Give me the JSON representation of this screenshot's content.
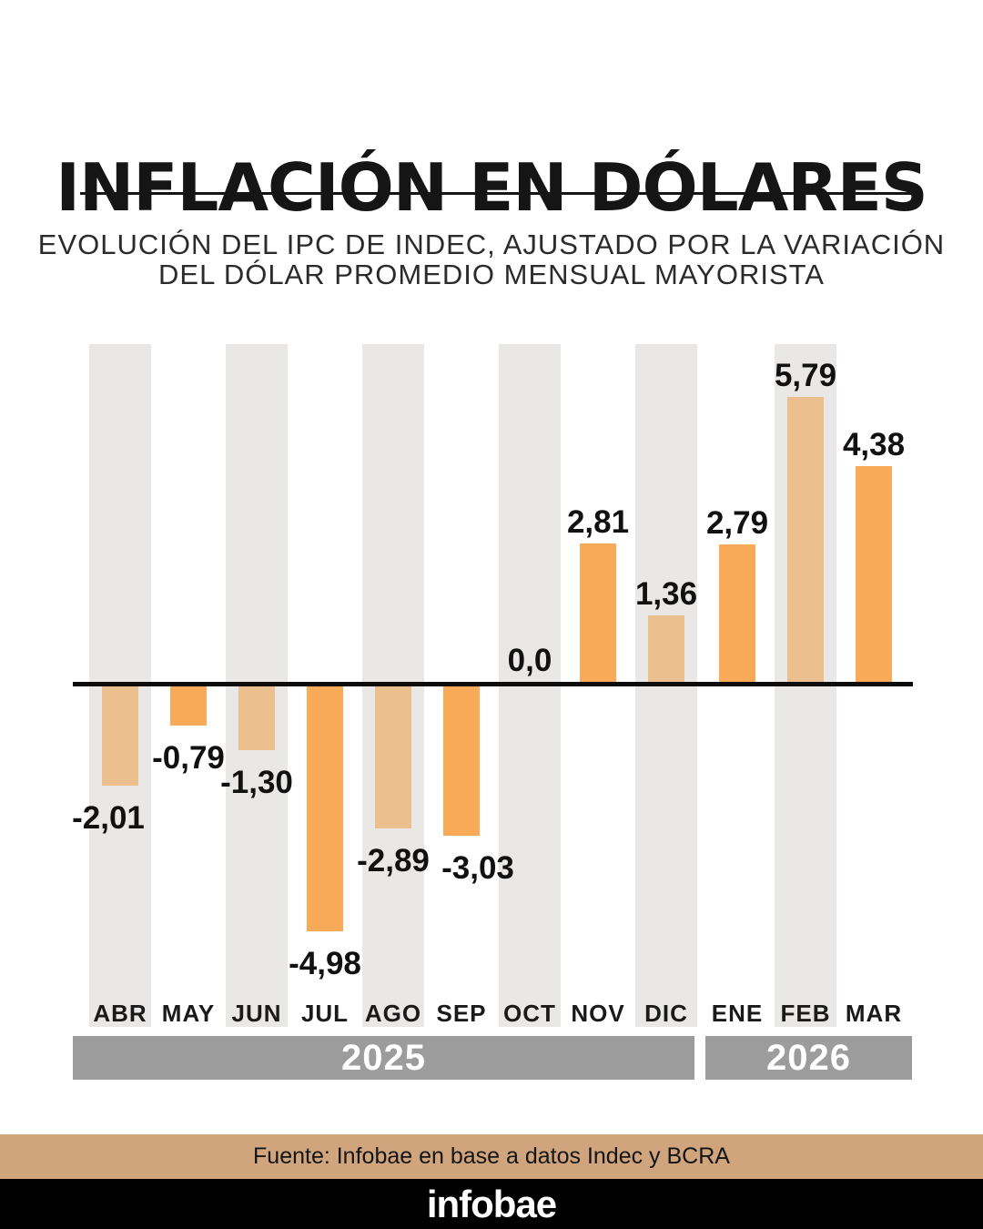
{
  "header": {
    "title": "INFLACIÓN EN DÓLARES",
    "subtitle_line1": "EVOLUCIÓN DEL IPC DE INDEC, AJUSTADO POR LA VARIACIÓN",
    "subtitle_line2": "DEL DÓLAR PROMEDIO MENSUAL MAYORISTA"
  },
  "chart_data": {
    "type": "bar",
    "categories": [
      "ABR",
      "MAY",
      "JUN",
      "JUL",
      "AGO",
      "SEP",
      "OCT",
      "NOV",
      "DIC",
      "ENE",
      "FEB",
      "MAR"
    ],
    "values": [
      -2.01,
      -0.79,
      -1.3,
      -4.98,
      -2.89,
      -3.03,
      0.0,
      2.81,
      1.36,
      2.79,
      5.79,
      4.38
    ],
    "value_labels": [
      "-2,01",
      "-0,79",
      "-1,30",
      "-4,98",
      "-2,89",
      "-3,03",
      "0,0",
      "2,81",
      "1,36",
      "2,79",
      "5,79",
      "4,38"
    ],
    "year_groups": [
      {
        "label": "2025",
        "months": [
          "ABR",
          "MAY",
          "JUN",
          "JUL",
          "AGO",
          "SEP",
          "OCT",
          "NOV",
          "DIC"
        ]
      },
      {
        "label": "2026",
        "months": [
          "ENE",
          "FEB",
          "MAR"
        ]
      }
    ],
    "baseline_value": 0,
    "ylim": [
      -5.5,
      6.5
    ],
    "grid": false,
    "legend": false,
    "title": "INFLACIÓN EN DÓLARES",
    "xlabel": "",
    "ylabel": ""
  },
  "footer": {
    "source": "Fuente: Infobae en base a datos Indec y BCRA",
    "brand": "infobae"
  },
  "colors": {
    "bar_orange": "#F8AA58",
    "bar_tan": "#EBC08E",
    "stripe_gray": "#E9E8E6",
    "year_band_gray": "#9C9C9C",
    "baseline_black": "#0D0D0D",
    "source_band_tan": "#D0A47C",
    "brand_band_black": "#000000",
    "text_black": "#151515"
  }
}
